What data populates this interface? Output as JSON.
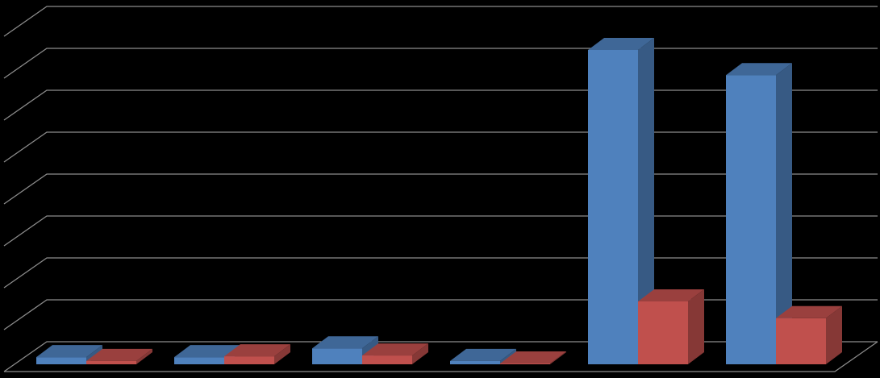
{
  "chart_data": {
    "type": "bar3d",
    "categories": [
      null,
      null,
      null,
      null,
      null,
      null
    ],
    "series": [
      {
        "color": "#4f81bd",
        "values": [
          0.17,
          0.17,
          0.38,
          0.08,
          7.5,
          6.9
        ]
      },
      {
        "color": "#c0504d",
        "values": [
          0.08,
          0.19,
          0.21,
          0.02,
          1.5,
          1.1
        ]
      }
    ],
    "ylim": [
      0,
      8
    ],
    "yticks": [
      0,
      1,
      2,
      3,
      4,
      5,
      6,
      7,
      8
    ],
    "grid": true
  }
}
